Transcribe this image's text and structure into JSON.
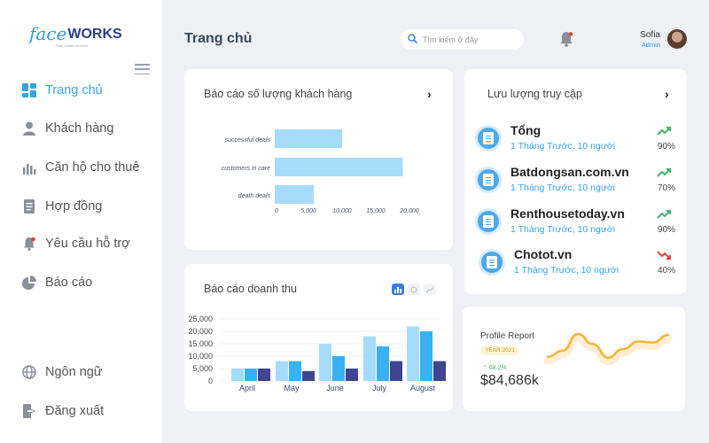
{
  "logo": {
    "face": "face",
    "works": "WORKS",
    "tagline": "Real estate services"
  },
  "nav": [
    {
      "label": "Trang chủ",
      "icon": "dashboard-icon",
      "active": true
    },
    {
      "label": "Khách hàng",
      "icon": "user-icon"
    },
    {
      "label": "Căn hộ cho thuê",
      "icon": "bar-chart-icon"
    },
    {
      "label": "Hợp đồng",
      "icon": "document-icon"
    },
    {
      "label": "Yêu cầu hỗ trợ",
      "icon": "bell-icon"
    },
    {
      "label": "Báo cáo",
      "icon": "pie-chart-icon"
    }
  ],
  "nav_bottom": [
    {
      "label": "Ngôn ngữ",
      "icon": "globe-icon"
    },
    {
      "label": "Đăng xuất",
      "icon": "logout-icon"
    }
  ],
  "header": {
    "title": "Trang chủ",
    "search_placeholder": "Tìm kiếm ở đây",
    "user_name": "Sofia",
    "user_role": "Admin"
  },
  "customer_card": {
    "title": "Báo cáo số lượng khách hàng"
  },
  "revenue_card": {
    "title": "Báo cáo doanh thu"
  },
  "traffic_card": {
    "title": "Lưu lượng truy cập",
    "items": [
      {
        "name": "Tổng",
        "sub": "1 Tháng Trước, 10 người",
        "pct": "90%",
        "trend": "up"
      },
      {
        "name": "Batdongsan.com.vn",
        "sub": "1 Tháng Trước, 10 người",
        "pct": "70%",
        "trend": "up"
      },
      {
        "name": "Renthousetoday.vn",
        "sub": "1 Tháng Trước, 10 người",
        "pct": "90%",
        "trend": "up"
      },
      {
        "name": "Chotot.vn",
        "sub": "1 Tháng Trước, 10 người",
        "pct": "40%",
        "trend": "down"
      }
    ]
  },
  "profile_report": {
    "title": "Profile Report",
    "year": "YEAR 2021",
    "change": "68.2%",
    "value": "$84,686k"
  },
  "colors": {
    "accent": "#35a3ea",
    "bar_light": "#a6dcfb",
    "bar_mid": "#3ab0f2",
    "bar_dark": "#3f458f",
    "up": "#3fb46a",
    "down": "#e0413a",
    "wave": "#f5b43c"
  },
  "chart_data": [
    {
      "type": "bar",
      "orientation": "horizontal",
      "title": "Báo cáo số lượng khách hàng",
      "categories": [
        "successful deals",
        "customers in care",
        "death deals"
      ],
      "values": [
        10000,
        19000,
        5800
      ],
      "xticks": [
        "0",
        "5,000",
        "10,000",
        "15,000",
        "20,000"
      ],
      "xlim": [
        0,
        20000
      ]
    },
    {
      "type": "bar",
      "title": "Báo cáo doanh thu",
      "categories": [
        "April",
        "May",
        "June",
        "July",
        "August"
      ],
      "series": [
        {
          "values": [
            5000,
            8000,
            15000,
            18000,
            22000
          ]
        },
        {
          "values": [
            5000,
            8000,
            10000,
            14000,
            20000
          ]
        },
        {
          "values": [
            5000,
            4000,
            5000,
            8000,
            8000
          ]
        }
      ],
      "yticks": [
        "25,000",
        "20,000",
        "15,000",
        "10,000",
        "5,000",
        "0"
      ],
      "ylim": [
        0,
        25000
      ]
    },
    {
      "type": "line",
      "title": "Profile Report",
      "values": [
        2,
        3.2,
        6.5,
        4.5,
        1.8,
        3.5,
        5,
        4.8,
        6.3
      ]
    }
  ]
}
